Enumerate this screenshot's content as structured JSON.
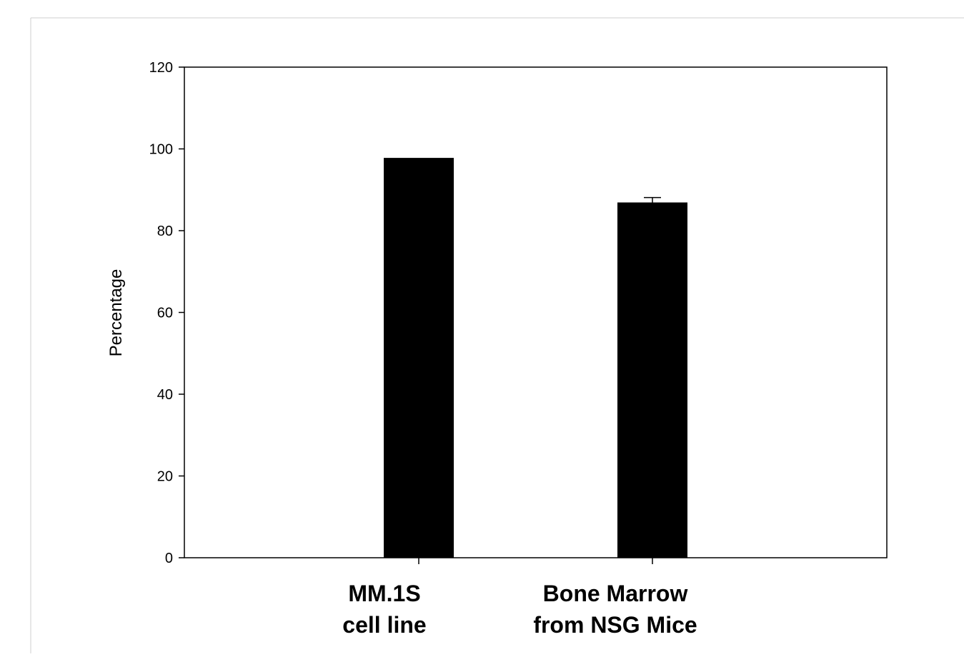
{
  "chart_data": {
    "type": "bar",
    "title": "",
    "xlabel": "",
    "ylabel": "Percentage",
    "categories": [
      [
        "MM.1S",
        "cell line"
      ],
      [
        "Bone Marrow",
        "from NSG Mice"
      ]
    ],
    "values": [
      97.8,
      86.9
    ],
    "error_upper": [
      0,
      1.2
    ],
    "ylim": [
      0,
      120
    ],
    "yticks": [
      0,
      20,
      40,
      60,
      80,
      100,
      120
    ],
    "grid": false,
    "legend": "none",
    "bar_color": "#000000"
  }
}
